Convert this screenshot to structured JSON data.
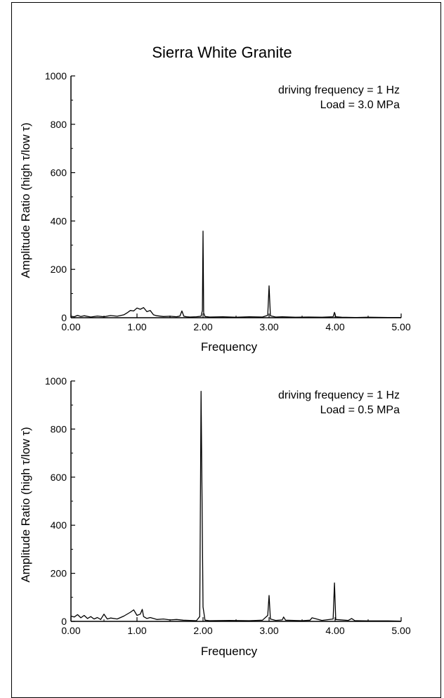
{
  "title": "Sierra White Granite",
  "chart_data": [
    {
      "type": "line",
      "xlabel": "Frequency",
      "ylabel": "Amplitude Ratio (high  τ/low τ)",
      "xlim": [
        0,
        5
      ],
      "ylim": [
        0,
        1000
      ],
      "xticks": [
        "0.00",
        "1.00",
        "2.00",
        "3.00",
        "4.00",
        "5.00"
      ],
      "yticks": [
        "0",
        "200",
        "400",
        "600",
        "800",
        "1000"
      ],
      "annotations": [
        "driving frequency = 1 Hz",
        "Load = 3.0 MPa"
      ],
      "grid": false,
      "series": [
        {
          "x": [
            0.0,
            0.05,
            0.1,
            0.15,
            0.2,
            0.3,
            0.4,
            0.5,
            0.6,
            0.7,
            0.8,
            0.85,
            0.9,
            0.95,
            1.0,
            1.05,
            1.1,
            1.15,
            1.2,
            1.25,
            1.3,
            1.4,
            1.5,
            1.6,
            1.65,
            1.68,
            1.71,
            1.75,
            1.8,
            1.9,
            1.97,
            1.99,
            2.0,
            2.01,
            2.03,
            2.1,
            2.3,
            2.5,
            2.7,
            2.9,
            2.98,
            3.0,
            3.02,
            3.1,
            3.2,
            3.4,
            3.6,
            3.8,
            3.97,
            3.99,
            4.01,
            4.1,
            4.3,
            4.5,
            4.8,
            5.0
          ],
          "y": [
            6,
            4,
            10,
            5,
            8,
            3,
            7,
            4,
            9,
            6,
            12,
            20,
            30,
            28,
            40,
            35,
            42,
            25,
            30,
            12,
            8,
            5,
            6,
            4,
            7,
            28,
            6,
            4,
            3,
            4,
            6,
            30,
            358,
            20,
            5,
            3,
            4,
            2,
            4,
            3,
            10,
            132,
            8,
            3,
            4,
            2,
            3,
            2,
            4,
            22,
            4,
            2,
            1,
            2,
            1,
            1
          ]
        }
      ]
    },
    {
      "type": "line",
      "xlabel": "Frequency",
      "ylabel": "Amplitude Ratio (high  τ/low τ)",
      "xlim": [
        0,
        5
      ],
      "ylim": [
        0,
        1000
      ],
      "xticks": [
        "0.00",
        "1.00",
        "2.00",
        "3.00",
        "4.00",
        "5.00"
      ],
      "yticks": [
        "0",
        "200",
        "400",
        "600",
        "800",
        "1000"
      ],
      "annotations": [
        "driving frequency = 1 Hz",
        "Load = 0.5 MPa"
      ],
      "grid": false,
      "series": [
        {
          "x": [
            0.0,
            0.05,
            0.1,
            0.15,
            0.2,
            0.25,
            0.3,
            0.35,
            0.4,
            0.45,
            0.5,
            0.55,
            0.6,
            0.7,
            0.8,
            0.9,
            0.95,
            1.0,
            1.05,
            1.08,
            1.1,
            1.15,
            1.2,
            1.3,
            1.4,
            1.5,
            1.6,
            1.7,
            1.8,
            1.9,
            1.95,
            1.97,
            2.0,
            2.03,
            2.1,
            2.4,
            2.7,
            2.9,
            2.98,
            3.0,
            3.02,
            3.1,
            3.2,
            3.22,
            3.25,
            3.5,
            3.62,
            3.65,
            3.8,
            3.97,
            3.99,
            4.01,
            4.2,
            4.25,
            4.3,
            4.5,
            4.8,
            5.0
          ],
          "y": [
            22,
            18,
            28,
            15,
            25,
            12,
            20,
            10,
            16,
            8,
            30,
            10,
            14,
            10,
            22,
            38,
            48,
            25,
            30,
            50,
            20,
            12,
            16,
            8,
            10,
            6,
            8,
            5,
            4,
            3,
            20,
            957,
            60,
            5,
            3,
            4,
            3,
            5,
            25,
            108,
            10,
            4,
            6,
            18,
            5,
            3,
            5,
            15,
            4,
            10,
            160,
            8,
            4,
            12,
            3,
            2,
            2,
            1
          ]
        }
      ]
    }
  ]
}
